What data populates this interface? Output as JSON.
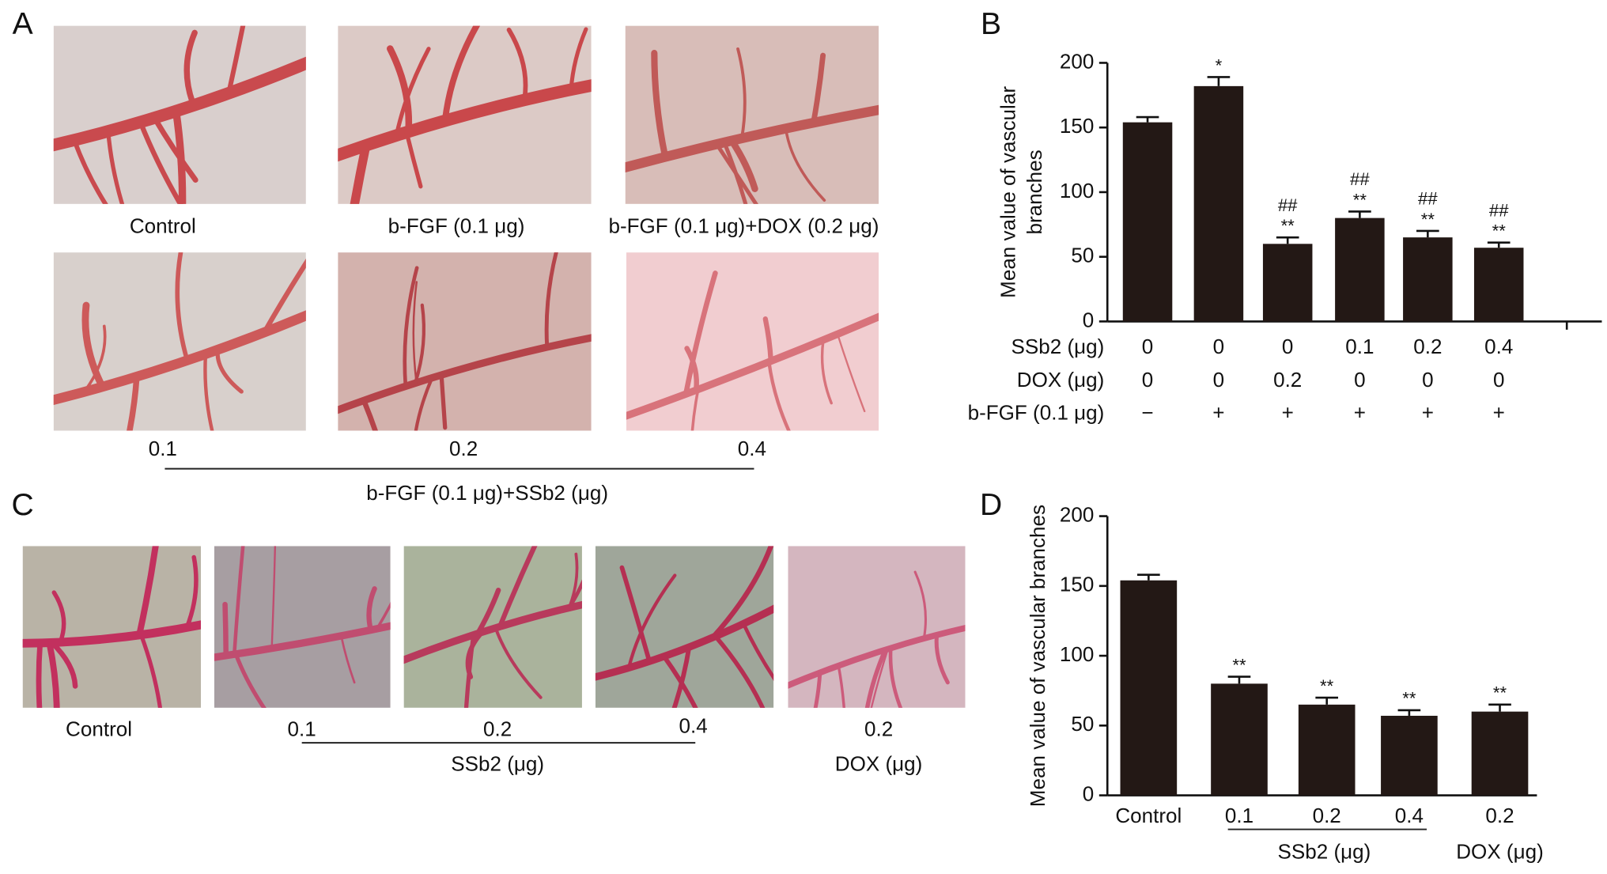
{
  "figure": {
    "panel_labels": [
      "A",
      "B",
      "C",
      "D"
    ],
    "panel_a": {
      "captions": [
        "Control",
        "b-FGF (0.1 μg)",
        "b-FGF (0.1 μg)+DOX (0.2 μg)"
      ],
      "dose_labels": [
        "0.1",
        "0.2",
        "0.4"
      ],
      "dose_group": "b-FGF (0.1 μg)+SSb2 (μg)"
    },
    "panel_c": {
      "captions": [
        "Control",
        "0.1",
        "0.2",
        "0.4",
        "0.2"
      ],
      "groups": [
        "SSb2 (μg)",
        "DOX (μg)"
      ]
    }
  },
  "chart_data": [
    {
      "type": "bar",
      "ylabel_lines": [
        "Mean value of vascular",
        "branches"
      ],
      "values": [
        154,
        182,
        60,
        80,
        65,
        57
      ],
      "errors": [
        4,
        7,
        5,
        5,
        5,
        4
      ],
      "significance": [
        null,
        "*",
        "**",
        "**",
        "**",
        "**"
      ],
      "significance_2": [
        null,
        null,
        "##",
        "##",
        "##",
        "##"
      ],
      "color": "#231815",
      "ylim": [
        0,
        200
      ],
      "yticks": [
        0,
        50,
        100,
        150,
        200
      ],
      "condition_rows": [
        {
          "label": "SSb2 (μg)",
          "cells": [
            "0",
            "0",
            "0",
            "0.1",
            "0.2",
            "0.4"
          ]
        },
        {
          "label": "DOX (μg)",
          "cells": [
            "0",
            "0",
            "0.2",
            "0",
            "0",
            "0"
          ]
        },
        {
          "label": "b-FGF (0.1 μg)",
          "cells": [
            "−",
            "+",
            "+",
            "+",
            "+",
            "+"
          ]
        }
      ]
    },
    {
      "type": "bar",
      "ylabel": "Mean value of vascular branches",
      "categories": [
        "Control",
        "0.1",
        "0.2",
        "0.4",
        "0.2"
      ],
      "values": [
        154,
        80,
        65,
        57,
        60
      ],
      "errors": [
        4,
        5,
        5,
        4,
        5
      ],
      "significance": [
        null,
        "**",
        "**",
        "**",
        "**"
      ],
      "groups": [
        "SSb2 (μg)",
        "DOX (μg)"
      ],
      "color": "#231815",
      "ylim": [
        0,
        200
      ],
      "yticks": [
        0,
        50,
        100,
        150,
        200
      ]
    }
  ]
}
